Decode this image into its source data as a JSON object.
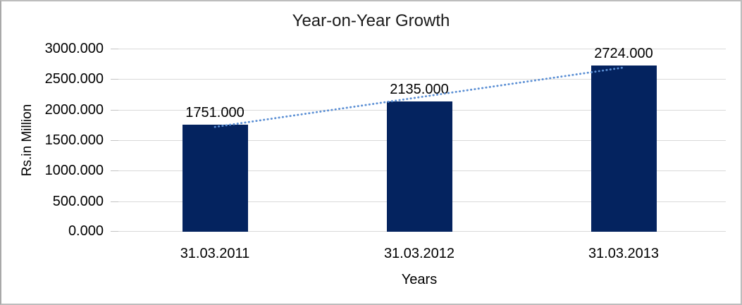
{
  "chart_data": {
    "type": "bar",
    "title": "Year-on-Year Growth",
    "xlabel": "Years",
    "ylabel": "Rs.in Million",
    "categories": [
      "31.03.2011",
      "31.03.2012",
      "31.03.2013"
    ],
    "values": [
      1751,
      2135,
      2724
    ],
    "value_labels": [
      "1751.000",
      "2135.000",
      "2724.000"
    ],
    "ylim": [
      0,
      3000
    ],
    "ytick_interval": 500,
    "ytick_labels": [
      "0.000",
      "500.000",
      "1000.000",
      "1500.000",
      "2000.000",
      "2500.000",
      "3000.000"
    ],
    "grid": true,
    "legend": "none",
    "trendline": {
      "type": "linear",
      "style": "dotted"
    },
    "colors": {
      "bar": "#04235f",
      "trendline": "#5b8fd4",
      "gridline": "#d9d9d9",
      "tick": "#c3c3c3",
      "text": "#000000",
      "frame_border": "#bdbdbd",
      "background": "#ffffff"
    }
  }
}
